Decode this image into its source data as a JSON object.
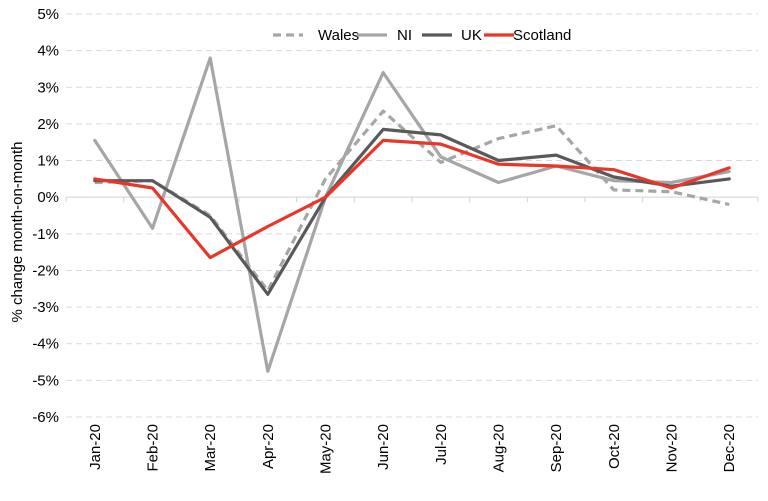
{
  "chart_data": {
    "type": "line",
    "title": "",
    "xlabel": "",
    "ylabel": "% change month-on-month",
    "categories": [
      "Jan-20",
      "Feb-20",
      "Mar-20",
      "Apr-20",
      "May-20",
      "Jun-20",
      "Jul-20",
      "Aug-20",
      "Sep-20",
      "Oct-20",
      "Nov-20",
      "Dec-20"
    ],
    "ylim": [
      -6,
      5
    ],
    "yticks": [
      5,
      4,
      3,
      2,
      1,
      0,
      -1,
      -2,
      -3,
      -4,
      -5,
      -6
    ],
    "ytick_labels": [
      "5%",
      "4%",
      "3%",
      "2%",
      "1%",
      "0%",
      "-1%",
      "-2%",
      "-3%",
      "-4%",
      "-5%",
      "-6%"
    ],
    "grid": true,
    "legend_position": "top",
    "series": [
      {
        "name": "Wales",
        "color": "#a6a6a6",
        "dashed": true,
        "values": [
          0.4,
          0.45,
          -0.5,
          -2.55,
          0.5,
          2.35,
          0.95,
          1.6,
          1.95,
          0.2,
          0.15,
          -0.2
        ]
      },
      {
        "name": "NI",
        "color": "#a6a6a6",
        "dashed": false,
        "values": [
          1.55,
          -0.85,
          3.8,
          -4.75,
          0.0,
          3.4,
          1.1,
          0.4,
          0.85,
          0.45,
          0.4,
          0.7
        ]
      },
      {
        "name": "UK",
        "color": "#595959",
        "dashed": false,
        "values": [
          0.45,
          0.45,
          -0.55,
          -2.65,
          0.0,
          1.85,
          1.7,
          1.0,
          1.15,
          0.55,
          0.3,
          0.5
        ]
      },
      {
        "name": "Scotland",
        "color": "#e8362a",
        "dashed": false,
        "values": [
          0.5,
          0.25,
          -1.65,
          -0.8,
          0.0,
          1.55,
          1.45,
          0.9,
          0.85,
          0.75,
          0.25,
          0.8
        ]
      }
    ]
  }
}
